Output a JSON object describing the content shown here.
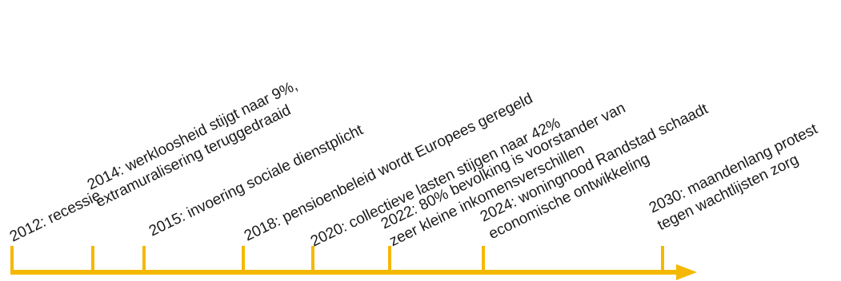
{
  "timeline": {
    "axis_color": "#f5b800",
    "events": [
      {
        "lines": [
          "2012: recessie"
        ]
      },
      {
        "lines": [
          "2014: werkloosheid stijgt naar 9%,",
          "extramuralisering teruggedraaid"
        ]
      },
      {
        "lines": [
          "2015: invoering sociale dienstplicht"
        ]
      },
      {
        "lines": [
          "2018: pensioenbeleid wordt Europees geregeld"
        ]
      },
      {
        "lines": [
          "2020: collectieve lasten stijgen naar 42%"
        ]
      },
      {
        "lines": [
          "2022: 80% bevolking is voorstander van",
          "zeer kleine inkomensverschillen"
        ]
      },
      {
        "lines": [
          "2024: woningnood Randstad schaadt",
          "economische ontwikkeling"
        ]
      },
      {
        "lines": [
          "2030: maandenlang protest",
          "tegen wachtlijsten zorg"
        ]
      }
    ]
  }
}
